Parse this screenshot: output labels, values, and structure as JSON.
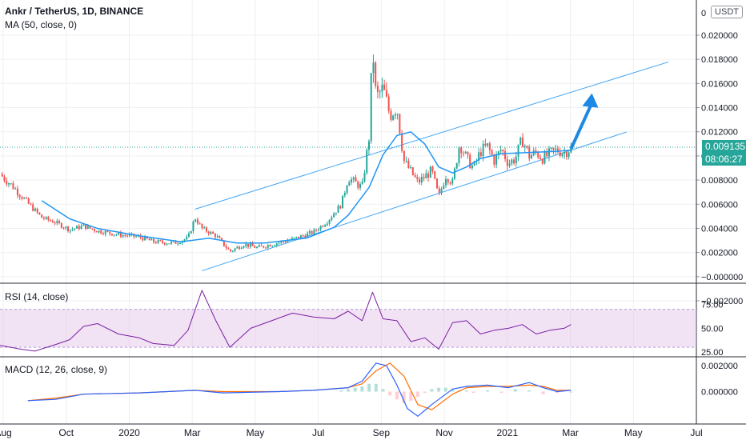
{
  "header": {
    "symbol": "Ankr / TetherUS, 1D, BINANCE",
    "ma_label": "MA (50, close, 0)",
    "currency": "USDT",
    "price_tag": "0.009135",
    "countdown_tag": "08:06:27"
  },
  "colors": {
    "up": "#26a69a",
    "down": "#ef5350",
    "ma": "#2196f3",
    "trendline": "#42a5f5",
    "arrow": "#1e88e5",
    "rsi": "#7b1fa2",
    "rsi_band": "#e1bee7",
    "macd": "#2962ff",
    "signal": "#ff6d00",
    "hist_up": "#b2dfdb",
    "hist_down": "#ffcdd2",
    "price_tag_bg": "#26a69a",
    "countdown_bg": "#26a69a"
  },
  "chart_data": [
    {
      "type": "candlestick",
      "title": "Ankr / TetherUS, 1D, BINANCE",
      "series": [
        {
          "name": "MA (50, close, 0)"
        }
      ],
      "x_ticks": [
        "Aug",
        "Oct",
        "2020",
        "Mar",
        "May",
        "Jul",
        "Sep",
        "Nov",
        "2021",
        "Mar",
        "May",
        "Jul"
      ],
      "y_ticks": [
        "0.020000",
        "0.018000",
        "0.016000",
        "0.014000",
        "0.012000",
        "0.010000",
        "0.008000",
        "0.006000",
        "0.004000",
        "0.002000",
        "−0.000000",
        "−0.002000"
      ],
      "ylim": [
        -0.002,
        0.021
      ],
      "y_axis_top_label": "0",
      "last_price": 0.009135,
      "grid": true,
      "annotations": [
        "ascending channel",
        "up arrow"
      ],
      "close_path": [
        [
          0,
          0.0069
        ],
        [
          0.02,
          0.0058
        ],
        [
          0.04,
          0.0045
        ],
        [
          0.06,
          0.0033
        ],
        [
          0.08,
          0.0029
        ],
        [
          0.1,
          0.0023
        ],
        [
          0.12,
          0.0026
        ],
        [
          0.14,
          0.0022
        ],
        [
          0.17,
          0.0019
        ],
        [
          0.2,
          0.0017
        ],
        [
          0.22,
          0.0013
        ],
        [
          0.25,
          0.0012
        ],
        [
          0.27,
          0.0016
        ],
        [
          0.28,
          0.0033
        ],
        [
          0.29,
          0.0024
        ],
        [
          0.31,
          0.0018
        ],
        [
          0.33,
          0.0005
        ],
        [
          0.35,
          0.0011
        ],
        [
          0.37,
          0.0008
        ],
        [
          0.39,
          0.0011
        ],
        [
          0.42,
          0.0015
        ],
        [
          0.45,
          0.0021
        ],
        [
          0.47,
          0.003
        ],
        [
          0.49,
          0.0044
        ],
        [
          0.5,
          0.0066
        ],
        [
          0.52,
          0.0058
        ],
        [
          0.53,
          0.01
        ],
        [
          0.535,
          0.0175
        ],
        [
          0.54,
          0.0132
        ],
        [
          0.55,
          0.014
        ],
        [
          0.56,
          0.0118
        ],
        [
          0.57,
          0.0125
        ],
        [
          0.58,
          0.008
        ],
        [
          0.6,
          0.0062
        ],
        [
          0.62,
          0.0072
        ],
        [
          0.63,
          0.005
        ],
        [
          0.64,
          0.0068
        ],
        [
          0.65,
          0.0062
        ],
        [
          0.66,
          0.0095
        ],
        [
          0.67,
          0.0082
        ],
        [
          0.68,
          0.0074
        ],
        [
          0.69,
          0.0088
        ],
        [
          0.7,
          0.0092
        ],
        [
          0.71,
          0.008
        ],
        [
          0.72,
          0.009
        ],
        [
          0.73,
          0.0078
        ],
        [
          0.74,
          0.0082
        ],
        [
          0.75,
          0.0098
        ],
        [
          0.76,
          0.0084
        ],
        [
          0.77,
          0.0087
        ],
        [
          0.78,
          0.0082
        ],
        [
          0.79,
          0.0086
        ],
        [
          0.8,
          0.0089
        ],
        [
          0.81,
          0.0087
        ],
        [
          0.82,
          0.0091
        ]
      ],
      "ma_path": [
        [
          0.06,
          0.0047
        ],
        [
          0.1,
          0.0032
        ],
        [
          0.14,
          0.0024
        ],
        [
          0.2,
          0.0018
        ],
        [
          0.26,
          0.0013
        ],
        [
          0.3,
          0.0016
        ],
        [
          0.34,
          0.0012
        ],
        [
          0.38,
          0.0012
        ],
        [
          0.44,
          0.0016
        ],
        [
          0.48,
          0.0025
        ],
        [
          0.5,
          0.0035
        ],
        [
          0.53,
          0.0058
        ],
        [
          0.55,
          0.0085
        ],
        [
          0.57,
          0.0101
        ],
        [
          0.59,
          0.0104
        ],
        [
          0.61,
          0.0094
        ],
        [
          0.63,
          0.0075
        ],
        [
          0.65,
          0.007
        ],
        [
          0.67,
          0.0075
        ],
        [
          0.69,
          0.0082
        ],
        [
          0.72,
          0.0086
        ],
        [
          0.76,
          0.0087
        ],
        [
          0.8,
          0.0088
        ],
        [
          0.82,
          0.0089
        ]
      ],
      "channel_upper": [
        [
          0.28,
          0.004
        ],
        [
          0.96,
          0.0162
        ]
      ],
      "channel_lower": [
        [
          0.29,
          -0.0011
        ],
        [
          0.9,
          0.0104
        ]
      ],
      "arrow": [
        [
          0.82,
          0.009
        ],
        [
          0.85,
          0.0136
        ]
      ]
    },
    {
      "type": "line",
      "title": "RSI (14, close)",
      "series": [
        {
          "name": "RSI (14, close)"
        }
      ],
      "y_ticks": [
        "75.00",
        "50.00",
        "25.00"
      ],
      "ylim": [
        20,
        95
      ],
      "band": [
        30,
        70
      ],
      "path": [
        [
          0,
          32
        ],
        [
          0.03,
          28
        ],
        [
          0.05,
          26
        ],
        [
          0.08,
          33
        ],
        [
          0.1,
          38
        ],
        [
          0.12,
          52
        ],
        [
          0.14,
          55
        ],
        [
          0.17,
          44
        ],
        [
          0.2,
          40
        ],
        [
          0.22,
          34
        ],
        [
          0.25,
          32
        ],
        [
          0.27,
          48
        ],
        [
          0.29,
          90
        ],
        [
          0.31,
          58
        ],
        [
          0.33,
          30
        ],
        [
          0.36,
          50
        ],
        [
          0.39,
          58
        ],
        [
          0.42,
          66
        ],
        [
          0.45,
          62
        ],
        [
          0.48,
          60
        ],
        [
          0.5,
          68
        ],
        [
          0.52,
          58
        ],
        [
          0.535,
          88
        ],
        [
          0.55,
          60
        ],
        [
          0.57,
          58
        ],
        [
          0.59,
          36
        ],
        [
          0.61,
          40
        ],
        [
          0.63,
          28
        ],
        [
          0.65,
          56
        ],
        [
          0.67,
          58
        ],
        [
          0.69,
          44
        ],
        [
          0.71,
          48
        ],
        [
          0.73,
          50
        ],
        [
          0.75,
          54
        ],
        [
          0.77,
          44
        ],
        [
          0.79,
          48
        ],
        [
          0.81,
          50
        ],
        [
          0.82,
          54
        ]
      ]
    },
    {
      "type": "line",
      "title": "MACD (12, 26, close, 9)",
      "series": [
        {
          "name": "MACD"
        },
        {
          "name": "Signal"
        },
        {
          "name": "Histogram"
        }
      ],
      "y_ticks": [
        "0.002000",
        "0.000000"
      ],
      "ylim": [
        -0.0025,
        0.0025
      ],
      "macd_path": [
        [
          0.04,
          -0.0007
        ],
        [
          0.08,
          -0.0006
        ],
        [
          0.12,
          -0.0002
        ],
        [
          0.2,
          -0.0001
        ],
        [
          0.28,
          0.0001
        ],
        [
          0.32,
          -0.0001
        ],
        [
          0.4,
          0.0
        ],
        [
          0.45,
          0.0001
        ],
        [
          0.5,
          0.0003
        ],
        [
          0.52,
          0.0008
        ],
        [
          0.54,
          0.0022
        ],
        [
          0.555,
          0.002
        ],
        [
          0.57,
          0.0005
        ],
        [
          0.585,
          -0.0013
        ],
        [
          0.6,
          -0.0019
        ],
        [
          0.62,
          -0.001
        ],
        [
          0.65,
          0.0002
        ],
        [
          0.67,
          0.0004
        ],
        [
          0.7,
          0.0005
        ],
        [
          0.73,
          0.0003
        ],
        [
          0.76,
          0.0007
        ],
        [
          0.78,
          0.0003
        ],
        [
          0.8,
          0.0
        ],
        [
          0.82,
          0.0001
        ]
      ],
      "signal_path": [
        [
          0.04,
          -0.0007
        ],
        [
          0.08,
          -0.0005
        ],
        [
          0.12,
          -0.0002
        ],
        [
          0.2,
          -0.0001
        ],
        [
          0.28,
          0.0001
        ],
        [
          0.32,
          0.0
        ],
        [
          0.4,
          0.0
        ],
        [
          0.45,
          0.0001
        ],
        [
          0.5,
          0.0003
        ],
        [
          0.52,
          0.0006
        ],
        [
          0.54,
          0.0016
        ],
        [
          0.56,
          0.0022
        ],
        [
          0.58,
          0.0012
        ],
        [
          0.6,
          -0.001
        ],
        [
          0.62,
          -0.0014
        ],
        [
          0.65,
          -0.0002
        ],
        [
          0.67,
          0.0003
        ],
        [
          0.7,
          0.0004
        ],
        [
          0.73,
          0.0004
        ],
        [
          0.76,
          0.0005
        ],
        [
          0.78,
          0.0004
        ],
        [
          0.8,
          0.0001
        ],
        [
          0.82,
          0.0001
        ]
      ],
      "histogram": [
        [
          0.49,
          0.0001
        ],
        [
          0.5,
          0.0002
        ],
        [
          0.51,
          0.0003
        ],
        [
          0.52,
          0.0004
        ],
        [
          0.53,
          0.0006
        ],
        [
          0.54,
          0.0006
        ],
        [
          0.55,
          0.0002
        ],
        [
          0.56,
          -0.0003
        ],
        [
          0.57,
          -0.0006
        ],
        [
          0.58,
          -0.0009
        ],
        [
          0.59,
          -0.0007
        ],
        [
          0.6,
          -0.0004
        ],
        [
          0.61,
          -0.0001
        ],
        [
          0.62,
          0.0002
        ],
        [
          0.63,
          0.0003
        ],
        [
          0.64,
          0.0003
        ],
        [
          0.65,
          0.0002
        ],
        [
          0.66,
          0.0001
        ],
        [
          0.67,
          0.0001
        ],
        [
          0.68,
          -0.0001
        ],
        [
          0.7,
          0.0001
        ],
        [
          0.72,
          -0.0001
        ],
        [
          0.74,
          0.0002
        ],
        [
          0.76,
          0.0001
        ],
        [
          0.78,
          -0.0002
        ],
        [
          0.8,
          -0.0001
        ],
        [
          0.82,
          0.0
        ]
      ]
    }
  ]
}
